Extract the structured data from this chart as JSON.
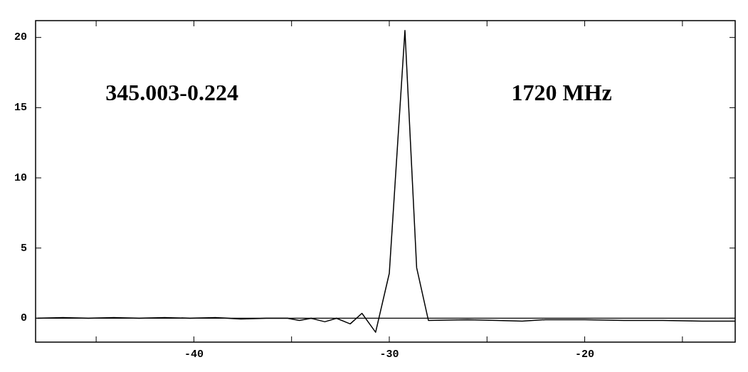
{
  "chart_data": {
    "type": "line",
    "annotations": [
      "345.003-0.224",
      "1720 MHz"
    ],
    "x": [
      -48.0,
      -46.7,
      -45.4,
      -44.1,
      -42.8,
      -41.5,
      -40.2,
      -38.9,
      -37.6,
      -36.3,
      -35.2,
      -34.6,
      -34.0,
      -33.3,
      -32.7,
      -32.0,
      -31.4,
      -30.7,
      -30.0,
      -29.2,
      -28.6,
      -28.0,
      -26.0,
      -24.5,
      -23.2,
      -22.0,
      -20.0,
      -18.0,
      -16.0,
      -14.0,
      -12.3
    ],
    "series": [
      {
        "color": "#000000",
        "values": [
          0,
          0.05,
          0,
          0.05,
          0,
          0.05,
          0,
          0.05,
          -0.05,
          0,
          0,
          -0.15,
          0,
          -0.25,
          0,
          -0.4,
          0.35,
          -1.0,
          3.2,
          20.5,
          3.6,
          -0.15,
          -0.1,
          -0.15,
          -0.2,
          -0.1,
          -0.1,
          -0.15,
          -0.15,
          -0.2,
          -0.2
        ]
      }
    ],
    "xlim": [
      -48.1,
      -12.3
    ],
    "ylim": [
      -1.7,
      21.2
    ],
    "xticks": [
      {
        "value": -45,
        "label": null
      },
      -40,
      {
        "value": -35,
        "label": null
      },
      -30,
      {
        "value": -25,
        "label": null
      },
      -20,
      {
        "value": -15,
        "label": null
      }
    ],
    "yticks": [
      0,
      5,
      10,
      15,
      20
    ],
    "ref_lines": [
      {
        "axis": "y",
        "value": 0,
        "color": "#000000"
      }
    ],
    "grid": false,
    "legend": false,
    "marker": "none",
    "line_style": "solid"
  }
}
